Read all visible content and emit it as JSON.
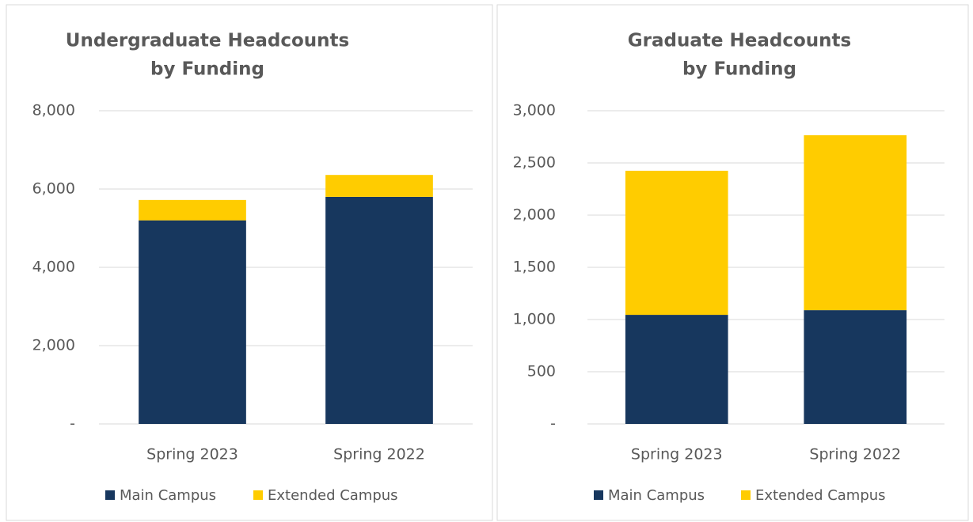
{
  "chart_data": [
    {
      "type": "bar",
      "stacked": true,
      "title": [
        "Undergraduate Headcounts",
        "by Funding"
      ],
      "categories": [
        "Spring 2023",
        "Spring 2022"
      ],
      "series": [
        {
          "name": "Main Campus",
          "color": "#17375e",
          "values": [
            5200,
            5800
          ]
        },
        {
          "name": "Extended Campus",
          "color": "#ffcc00",
          "values": [
            520,
            560
          ]
        }
      ],
      "ylim": [
        0,
        8000
      ],
      "yticks": [
        {
          "value": 0,
          "label": "-"
        },
        {
          "value": 2000,
          "label": "2,000"
        },
        {
          "value": 4000,
          "label": "4,000"
        },
        {
          "value": 6000,
          "label": "6,000"
        },
        {
          "value": 8000,
          "label": "8,000"
        }
      ],
      "grid": true,
      "legend": "bottom"
    },
    {
      "type": "bar",
      "stacked": true,
      "title": [
        "Graduate Headcounts",
        "by Funding"
      ],
      "categories": [
        "Spring 2023",
        "Spring 2022"
      ],
      "series": [
        {
          "name": "Main Campus",
          "color": "#17375e",
          "values": [
            1045,
            1090
          ]
        },
        {
          "name": "Extended Campus",
          "color": "#ffcc00",
          "values": [
            1380,
            1675
          ]
        }
      ],
      "ylim": [
        0,
        3000
      ],
      "yticks": [
        {
          "value": 0,
          "label": "-"
        },
        500,
        {
          "value": 1000,
          "label": "1,000"
        },
        {
          "value": 1500,
          "label": "1,500"
        },
        {
          "value": 2000,
          "label": "2,000"
        },
        {
          "value": 2500,
          "label": "2,500"
        },
        {
          "value": 3000,
          "label": "3,000"
        }
      ],
      "grid": true,
      "legend": "bottom"
    }
  ]
}
